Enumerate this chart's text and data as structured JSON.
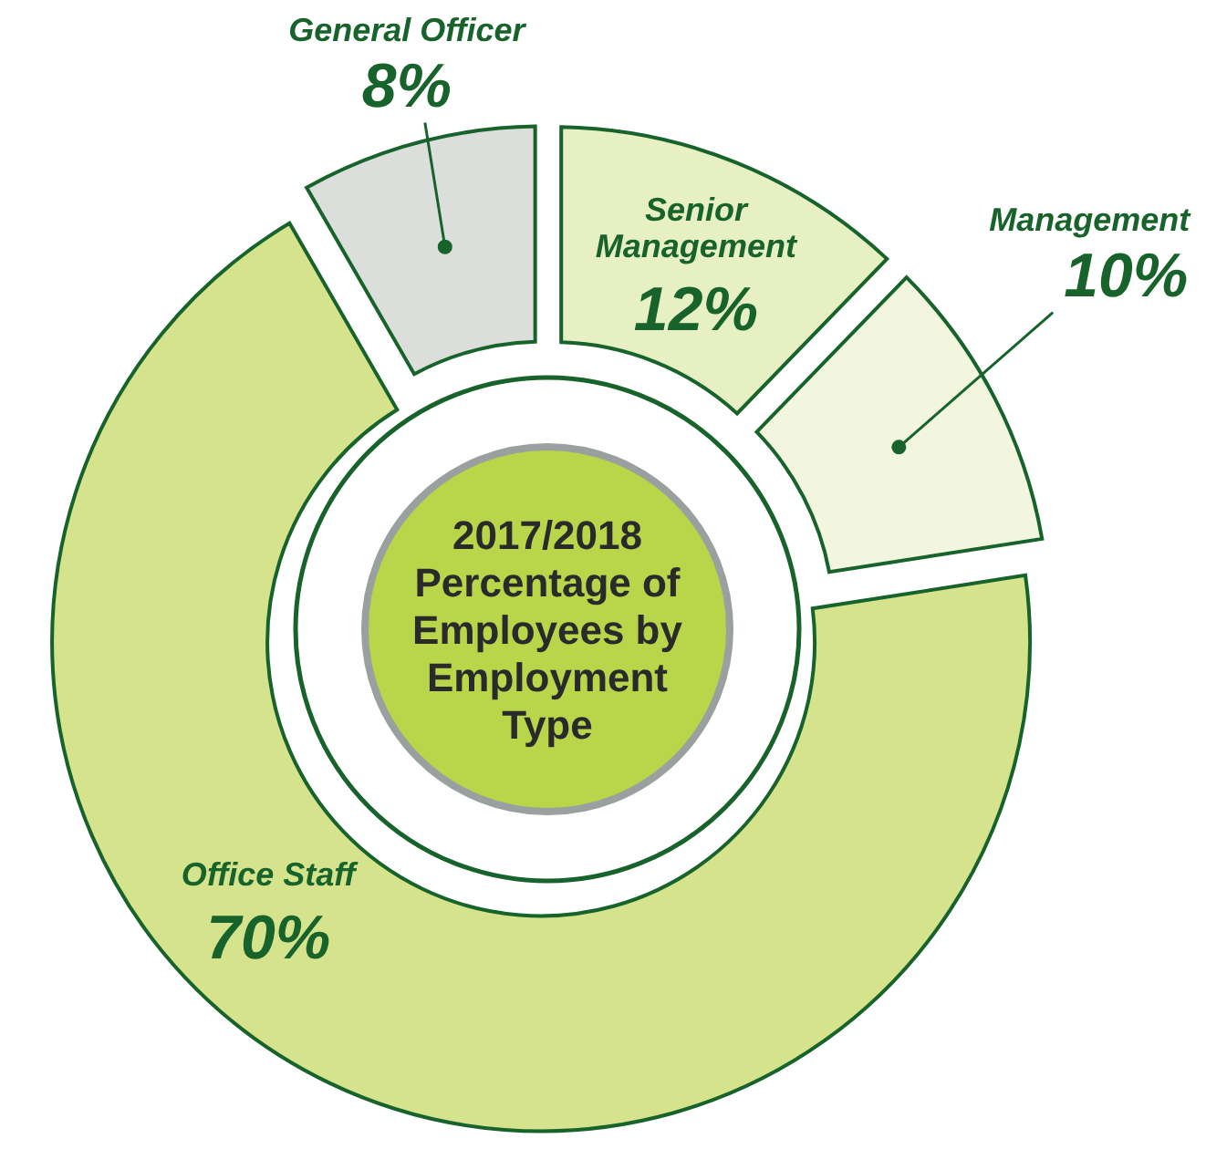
{
  "chart_data": {
    "type": "donut",
    "title": "2017/2018 Percentage of Employees by Employment Type",
    "categories": [
      "Senior Management",
      "Management",
      "Office Staff",
      "General Officer"
    ],
    "values": [
      12,
      10,
      70,
      8
    ],
    "value_labels": [
      "12%",
      "10%",
      "70%",
      "8%"
    ],
    "colors": [
      "#e6f0c2",
      "#f2f6de",
      "#d5e48c",
      "#dcdedb"
    ]
  }
}
